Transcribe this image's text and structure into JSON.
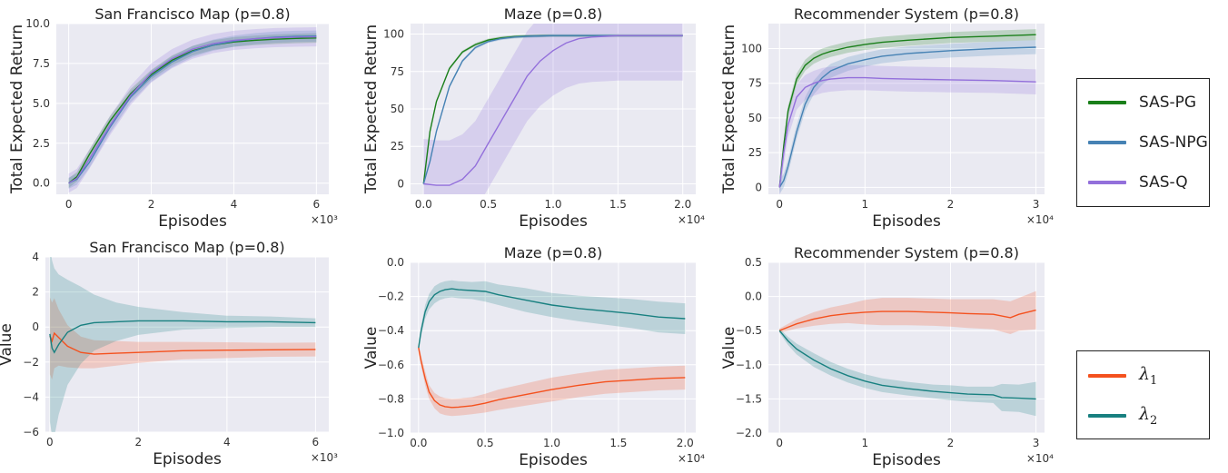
{
  "chart_data": [
    {
      "id": "sf-return",
      "type": "line",
      "title": "San Francisco Map (p=0.8)",
      "xlabel": "Episodes",
      "ylabel": "Total Expected Return",
      "xlim": [
        -300,
        6300
      ],
      "ylim": [
        -0.7,
        10.0
      ],
      "xticks": [
        0,
        2,
        4,
        6
      ],
      "yticks": [
        "0.0",
        "2.5",
        "5.0",
        "7.5",
        "10.0"
      ],
      "xticks_values": [
        0,
        2000,
        4000,
        6000
      ],
      "yticks_values": [
        0,
        2.5,
        5,
        7.5,
        10
      ],
      "x_multiplier": "×10³",
      "series": [
        {
          "name": "SAS-PG",
          "color": "#1a7f1a",
          "x": [
            0,
            200,
            500,
            1000,
            1500,
            2000,
            2500,
            3000,
            3500,
            4000,
            4500,
            5000,
            5500,
            6000
          ],
          "y": [
            0,
            0.4,
            1.8,
            3.9,
            5.6,
            6.8,
            7.7,
            8.3,
            8.65,
            8.85,
            8.95,
            9.02,
            9.07,
            9.1
          ],
          "band": 0.3
        },
        {
          "name": "SAS-NPG",
          "color": "#4682b4",
          "x": [
            0,
            200,
            500,
            1000,
            1500,
            2000,
            2500,
            3000,
            3500,
            4000,
            4500,
            5000,
            5500,
            6000
          ],
          "y": [
            0,
            0.25,
            1.3,
            3.5,
            5.4,
            6.7,
            7.6,
            8.25,
            8.65,
            8.9,
            9.05,
            9.15,
            9.2,
            9.22
          ],
          "band": 0.35
        },
        {
          "name": "SAS-Q",
          "color": "#9370db",
          "x": [
            0,
            200,
            500,
            1000,
            1500,
            2000,
            2500,
            3000,
            3500,
            4000,
            4500,
            5000,
            5500,
            6000
          ],
          "y": [
            0,
            0.3,
            1.5,
            3.6,
            5.5,
            6.9,
            7.8,
            8.4,
            8.75,
            8.95,
            9.05,
            9.12,
            9.15,
            9.17
          ],
          "band": 0.6
        }
      ]
    },
    {
      "id": "maze-return",
      "type": "line",
      "title": "Maze (p=0.8)",
      "xlabel": "Episodes",
      "ylabel": "Total Expected Return",
      "xlim": [
        -1000,
        21000
      ],
      "ylim": [
        -7,
        107
      ],
      "xticks": [
        "0.0",
        "0.5",
        "1.0",
        "1.5",
        "2.0"
      ],
      "yticks": [
        "0",
        "25",
        "50",
        "75",
        "100"
      ],
      "xticks_values": [
        0,
        5000,
        10000,
        15000,
        20000
      ],
      "yticks_values": [
        0,
        25,
        50,
        75,
        100
      ],
      "x_multiplier": "×10⁴",
      "series": [
        {
          "name": "SAS-PG",
          "color": "#1a7f1a",
          "x": [
            0,
            500,
            1000,
            2000,
            3000,
            4000,
            5000,
            6000,
            7000,
            8000,
            10000,
            12000,
            15000,
            20000
          ],
          "y": [
            0,
            35,
            55,
            77,
            88,
            93,
            96,
            97.5,
            98.3,
            98.7,
            99,
            99,
            99,
            99
          ],
          "band": 1
        },
        {
          "name": "SAS-NPG",
          "color": "#4682b4",
          "x": [
            0,
            500,
            1000,
            2000,
            3000,
            4000,
            5000,
            6000,
            7000,
            8000,
            10000,
            12000,
            15000,
            20000
          ],
          "y": [
            0,
            15,
            35,
            65,
            82,
            91,
            95,
            97,
            98,
            98.5,
            99,
            99,
            99,
            99
          ],
          "band": 1
        },
        {
          "name": "SAS-Q",
          "color": "#9370db",
          "x": [
            0,
            1000,
            2000,
            3000,
            4000,
            5000,
            6000,
            7000,
            8000,
            9000,
            10000,
            11000,
            12000,
            13000,
            14000,
            15000,
            17000,
            20000
          ],
          "y": [
            0,
            -1,
            -1,
            3,
            12,
            27,
            42,
            57,
            72,
            82,
            89,
            94,
            97,
            98,
            98.5,
            99,
            99,
            99
          ],
          "band": 30
        }
      ]
    },
    {
      "id": "rec-return",
      "type": "line",
      "title": "Recommender System (p=0.8)",
      "xlabel": "Episodes",
      "ylabel": "Total Expected Return",
      "xlim": [
        -1300,
        31000
      ],
      "ylim": [
        -5,
        118
      ],
      "xticks": [
        "0",
        "1",
        "2",
        "3"
      ],
      "yticks": [
        "0",
        "25",
        "50",
        "75",
        "100"
      ],
      "xticks_values": [
        0,
        10000,
        20000,
        30000
      ],
      "yticks_values": [
        0,
        25,
        50,
        75,
        100
      ],
      "x_multiplier": "×10⁴",
      "series": [
        {
          "name": "SAS-PG",
          "color": "#1a7f1a",
          "x": [
            0,
            500,
            1000,
            2000,
            3000,
            4000,
            5000,
            6000,
            8000,
            10000,
            12000,
            15000,
            20000,
            25000,
            30000
          ],
          "y": [
            0,
            30,
            55,
            78,
            88,
            93,
            96,
            98,
            101,
            103,
            104.5,
            106,
            108,
            109,
            110
          ],
          "band": 4
        },
        {
          "name": "SAS-NPG",
          "color": "#4682b4",
          "x": [
            0,
            500,
            1000,
            2000,
            3000,
            4000,
            5000,
            6000,
            8000,
            10000,
            12000,
            15000,
            20000,
            25000,
            30000
          ],
          "y": [
            0,
            5,
            15,
            40,
            60,
            72,
            79,
            84,
            89,
            92,
            94.5,
            96.5,
            98.5,
            100,
            101
          ],
          "band": 5
        },
        {
          "name": "SAS-Q",
          "color": "#9370db",
          "x": [
            0,
            500,
            1000,
            2000,
            3000,
            4000,
            5000,
            6000,
            8000,
            10000,
            12000,
            15000,
            20000,
            25000,
            30000
          ],
          "y": [
            0,
            25,
            45,
            65,
            72,
            75,
            77,
            78,
            79,
            79,
            78.5,
            78,
            77.5,
            77,
            76
          ],
          "band": 9
        }
      ]
    },
    {
      "id": "sf-value",
      "type": "line",
      "title": "San Francisco Map (p=0.8)",
      "xlabel": "Episodes",
      "ylabel": "Value",
      "xlim": [
        -100,
        6300
      ],
      "ylim": [
        -6,
        4
      ],
      "xticks": [
        "0",
        "2",
        "4",
        "6"
      ],
      "yticks": [
        "−6",
        "−4",
        "−2",
        "0",
        "2",
        "4"
      ],
      "xticks_values": [
        0,
        2000,
        4000,
        6000
      ],
      "yticks_values": [
        -6,
        -4,
        -2,
        0,
        2,
        4
      ],
      "x_multiplier": "×10³",
      "series": [
        {
          "name": "λ₁",
          "color": "#f4511e",
          "x": [
            0,
            50,
            100,
            200,
            400,
            700,
            1000,
            1500,
            2000,
            3000,
            4000,
            5000,
            6000
          ],
          "y": [
            -0.5,
            -0.8,
            -0.35,
            -0.6,
            -1.1,
            -1.45,
            -1.55,
            -1.5,
            -1.45,
            -1.35,
            -1.32,
            -1.3,
            -1.28
          ],
          "band": [
            2.2,
            2.2,
            2.0,
            1.6,
            1.2,
            0.9,
            0.8,
            0.7,
            0.6,
            0.5,
            0.45,
            0.4,
            0.4
          ]
        },
        {
          "name": "λ₂",
          "color": "#188080",
          "x": [
            0,
            50,
            100,
            200,
            400,
            700,
            1000,
            1500,
            2000,
            3000,
            4000,
            5000,
            6000
          ],
          "y": [
            -0.4,
            -1.2,
            -1.45,
            -1.0,
            -0.3,
            0.1,
            0.25,
            0.3,
            0.35,
            0.35,
            0.3,
            0.3,
            0.25
          ],
          "band": [
            5.0,
            5.0,
            4.8,
            4.0,
            3.0,
            2.2,
            1.6,
            1.1,
            0.8,
            0.5,
            0.35,
            0.3,
            0.25
          ]
        }
      ]
    },
    {
      "id": "maze-value",
      "type": "line",
      "title": "Maze (p=0.8)",
      "xlabel": "Episodes",
      "ylabel": "Value",
      "xlim": [
        -600,
        20800
      ],
      "ylim": [
        -1.0,
        0.0
      ],
      "xticks": [
        "0.0",
        "0.5",
        "1.0",
        "1.5",
        "2.0"
      ],
      "yticks": [
        "−1.0",
        "−0.8",
        "−0.6",
        "−0.4",
        "−0.2",
        "0.0"
      ],
      "xticks_values": [
        0,
        5000,
        10000,
        15000,
        20000
      ],
      "yticks_values": [
        -1.0,
        -0.8,
        -0.6,
        -0.4,
        -0.2,
        0
      ],
      "x_multiplier": "×10⁴",
      "series": [
        {
          "name": "λ₁",
          "color": "#f4511e",
          "x": [
            0,
            200,
            500,
            800,
            1200,
            1600,
            2000,
            2500,
            3000,
            4000,
            5000,
            6000,
            8000,
            10000,
            12000,
            14000,
            16000,
            18000,
            20000
          ],
          "y": [
            -0.5,
            -0.58,
            -0.68,
            -0.76,
            -0.81,
            -0.835,
            -0.845,
            -0.85,
            -0.848,
            -0.84,
            -0.825,
            -0.805,
            -0.775,
            -0.745,
            -0.72,
            -0.7,
            -0.69,
            -0.68,
            -0.675
          ],
          "band": [
            0.03,
            0.03,
            0.04,
            0.04,
            0.045,
            0.05,
            0.05,
            0.05,
            0.05,
            0.05,
            0.055,
            0.06,
            0.065,
            0.07,
            0.07,
            0.07,
            0.07,
            0.07,
            0.07
          ]
        },
        {
          "name": "λ₂",
          "color": "#188080",
          "x": [
            0,
            200,
            500,
            800,
            1200,
            1600,
            2000,
            2500,
            3000,
            4000,
            5000,
            6000,
            8000,
            10000,
            12000,
            14000,
            16000,
            18000,
            20000
          ],
          "y": [
            -0.5,
            -0.4,
            -0.29,
            -0.23,
            -0.19,
            -0.17,
            -0.16,
            -0.155,
            -0.16,
            -0.165,
            -0.17,
            -0.19,
            -0.22,
            -0.25,
            -0.27,
            -0.285,
            -0.3,
            -0.32,
            -0.33
          ],
          "band": [
            0.03,
            0.03,
            0.04,
            0.045,
            0.05,
            0.05,
            0.05,
            0.05,
            0.05,
            0.05,
            0.06,
            0.06,
            0.07,
            0.07,
            0.075,
            0.08,
            0.085,
            0.09,
            0.09
          ]
        }
      ]
    },
    {
      "id": "rec-value",
      "type": "line",
      "title": "Recommender System (p=0.8)",
      "xlabel": "Episodes",
      "ylabel": "Value",
      "xlim": [
        -1300,
        31000
      ],
      "ylim": [
        -2.0,
        0.5
      ],
      "xticks": [
        "0",
        "1",
        "2",
        "3"
      ],
      "yticks": [
        "−2.0",
        "−1.5",
        "−1.0",
        "−0.5",
        "0.0",
        "0.5"
      ],
      "xticks_values": [
        0,
        10000,
        20000,
        30000
      ],
      "yticks_values": [
        -2.0,
        -1.5,
        -1.0,
        -0.5,
        0,
        0.5
      ],
      "x_multiplier": "×10⁴",
      "series": [
        {
          "name": "λ₁",
          "color": "#f4511e",
          "x": [
            0,
            1000,
            2000,
            4000,
            6000,
            8000,
            10000,
            12000,
            15000,
            18000,
            20000,
            22000,
            25000,
            27000,
            28000,
            30000
          ],
          "y": [
            -0.5,
            -0.45,
            -0.4,
            -0.33,
            -0.28,
            -0.25,
            -0.23,
            -0.22,
            -0.22,
            -0.23,
            -0.24,
            -0.25,
            -0.26,
            -0.31,
            -0.26,
            -0.2
          ],
          "band": [
            0.03,
            0.05,
            0.07,
            0.1,
            0.12,
            0.14,
            0.18,
            0.2,
            0.2,
            0.2,
            0.2,
            0.21,
            0.22,
            0.24,
            0.24,
            0.28
          ]
        },
        {
          "name": "λ₂",
          "color": "#188080",
          "x": [
            0,
            1000,
            2000,
            4000,
            6000,
            8000,
            10000,
            12000,
            15000,
            18000,
            20000,
            22000,
            25000,
            26000,
            28000,
            30000
          ],
          "y": [
            -0.5,
            -0.65,
            -0.77,
            -0.93,
            -1.06,
            -1.16,
            -1.24,
            -1.3,
            -1.35,
            -1.39,
            -1.41,
            -1.43,
            -1.44,
            -1.48,
            -1.49,
            -1.5
          ],
          "band": [
            0.03,
            0.06,
            0.08,
            0.1,
            0.1,
            0.1,
            0.1,
            0.1,
            0.1,
            0.1,
            0.11,
            0.11,
            0.12,
            0.2,
            0.2,
            0.25
          ]
        }
      ]
    }
  ],
  "legend_top": {
    "entries": [
      {
        "label": "SAS-PG",
        "color": "#1a7f1a"
      },
      {
        "label": "SAS-NPG",
        "color": "#4682b4"
      },
      {
        "label": "SAS-Q",
        "color": "#9370db"
      }
    ]
  },
  "legend_bottom": {
    "entries": [
      {
        "label": "λ",
        "sub": "1",
        "color": "#f4511e"
      },
      {
        "label": "λ",
        "sub": "2",
        "color": "#188080"
      }
    ]
  }
}
